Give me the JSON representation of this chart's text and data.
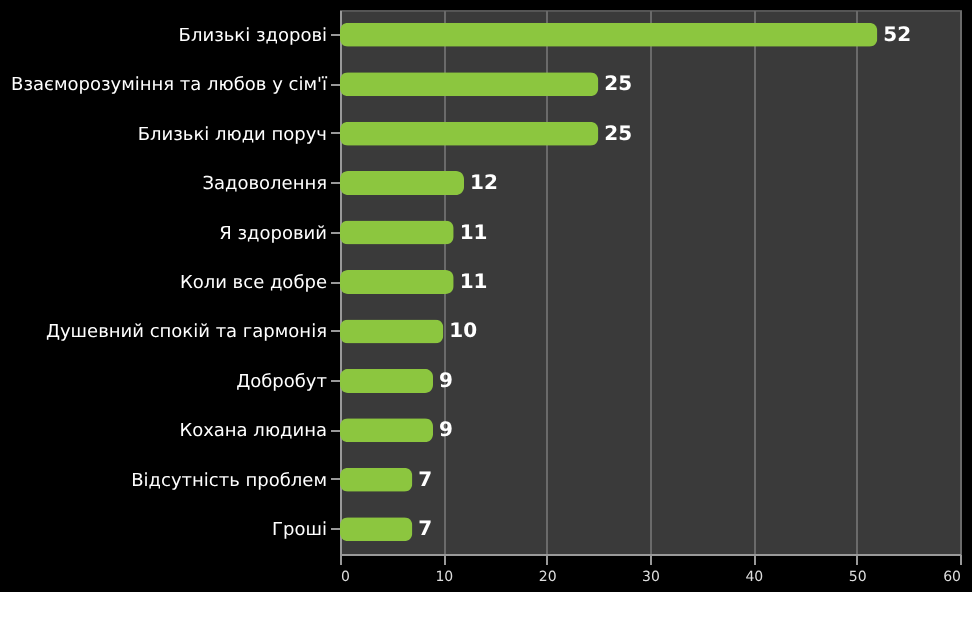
{
  "chart_data": {
    "type": "bar",
    "orientation": "horizontal",
    "categories": [
      "Близькі здорові",
      "Взаєморозуміння та любов у сім'ї",
      "Близькі люди поруч",
      "Задоволення",
      "Я здоровий",
      "Коли все добре",
      "Душевний спокій та гармонія",
      "Добробут",
      "Кохана людина",
      "Відсутність проблем",
      "Гроші"
    ],
    "values": [
      52,
      25,
      25,
      12,
      11,
      11,
      10,
      9,
      9,
      7,
      7
    ],
    "color": "#8cc63f",
    "xlim": [
      0,
      60
    ],
    "xticks": [
      0,
      10,
      20,
      30,
      40,
      50,
      60
    ],
    "grid": "x",
    "data_labels": true
  }
}
